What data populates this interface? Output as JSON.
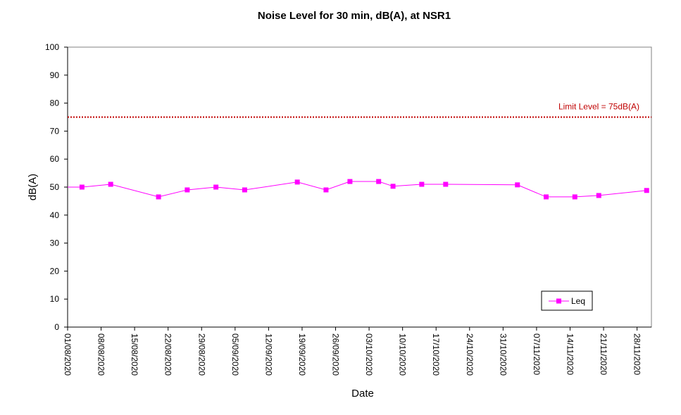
{
  "chart_data": {
    "type": "line",
    "title": "Noise Level for 30 min, dB(A), at NSR1",
    "xlabel": "Date",
    "ylabel": "dB(A)",
    "ylim": [
      0,
      100
    ],
    "yticks": [
      "0",
      "10",
      "20",
      "30",
      "40",
      "50",
      "60",
      "70",
      "80",
      "90",
      "100"
    ],
    "xlim": [
      "2020-08-01",
      "2020-12-01"
    ],
    "xticks": [
      "01/08/2020",
      "08/08/2020",
      "15/08/2020",
      "22/08/2020",
      "29/08/2020",
      "05/09/2020",
      "12/09/2020",
      "19/09/2020",
      "26/09/2020",
      "03/10/2020",
      "10/10/2020",
      "17/10/2020",
      "24/10/2020",
      "31/10/2020",
      "07/11/2020",
      "14/11/2020",
      "21/11/2020",
      "28/11/2020"
    ],
    "grid": false,
    "legend_position": "bottom-right",
    "series": [
      {
        "name": "Leq",
        "color": "#FF00FF",
        "marker": "square",
        "x": [
          "2020-08-04",
          "2020-08-10",
          "2020-08-20",
          "2020-08-26",
          "2020-09-01",
          "2020-09-07",
          "2020-09-18",
          "2020-09-24",
          "2020-09-29",
          "2020-10-05",
          "2020-10-08",
          "2020-10-14",
          "2020-10-19",
          "2020-11-03",
          "2020-11-09",
          "2020-11-15",
          "2020-11-20",
          "2020-11-30"
        ],
        "y": [
          50,
          51,
          46.5,
          49,
          50,
          49,
          51.8,
          49,
          52,
          52,
          50.3,
          51,
          51,
          50.8,
          46.5,
          46.5,
          47,
          48.8
        ]
      }
    ],
    "reference_line": {
      "label": "Limit Level  = 75dB(A)",
      "value": 75,
      "color": "#C00000",
      "style": "dotted"
    }
  }
}
